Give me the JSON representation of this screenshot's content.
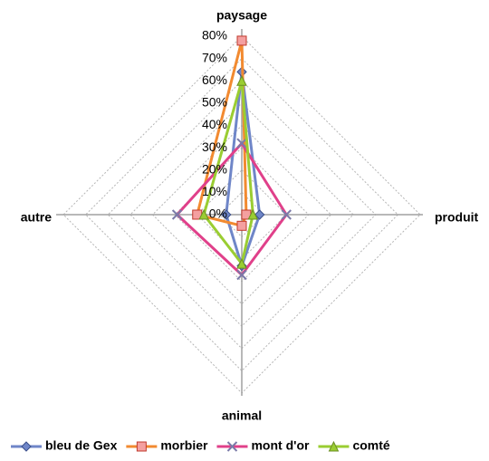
{
  "chart_data": {
    "type": "radar",
    "categories": [
      "paysage",
      "produit",
      "animal",
      "autre"
    ],
    "ylim": [
      0,
      80
    ],
    "yticks": [
      {
        "value": 0,
        "label": "0%"
      },
      {
        "value": 10,
        "label": "10%"
      },
      {
        "value": 20,
        "label": "20%"
      },
      {
        "value": 30,
        "label": "30%"
      },
      {
        "value": 40,
        "label": "40%"
      },
      {
        "value": 50,
        "label": "50%"
      },
      {
        "value": 60,
        "label": "60%"
      },
      {
        "value": 70,
        "label": "70%"
      },
      {
        "value": 80,
        "label": "80%"
      }
    ],
    "grid": true,
    "legend": "bottom",
    "series": [
      {
        "name": "bleu de Gex",
        "color": "#6f86c8",
        "marker": "diamond",
        "values": [
          64,
          8,
          23,
          7
        ]
      },
      {
        "name": "morbier",
        "color": "#f28a30",
        "marker": "square",
        "values": [
          78,
          2,
          5,
          20
        ]
      },
      {
        "name": "mont d'or",
        "color": "#e0408a",
        "marker": "x",
        "values": [
          32,
          20,
          27,
          29
        ]
      },
      {
        "name": "comté",
        "color": "#9acd32",
        "marker": "triangle",
        "values": [
          60,
          5,
          22,
          17
        ]
      }
    ]
  }
}
